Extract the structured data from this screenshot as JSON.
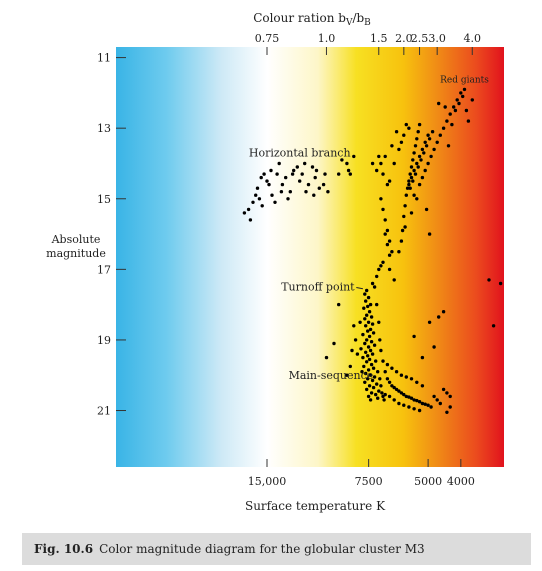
{
  "chart_data": {
    "type": "scatter",
    "title": "",
    "top_axis": {
      "label": "Colour ration b",
      "label_sub1": "V",
      "label_slash": "/b",
      "label_sub2": "B",
      "ticks": [
        {
          "label": "0.75",
          "temperature": 15000
        },
        {
          "label": "1.0",
          "temperature": 10000
        },
        {
          "label": "1.5",
          "temperature": 7000
        },
        {
          "label": "2.0",
          "temperature": 5900
        },
        {
          "label": "2.5",
          "temperature": 5300
        },
        {
          "label": "3.0",
          "temperature": 4700
        },
        {
          "label": "4.0",
          "temperature": 3700
        }
      ]
    },
    "xlabel": "Surface temperature K",
    "x_ticks": [
      {
        "label": "15,000",
        "value": 15000
      },
      {
        "label": "7500",
        "value": 7500
      },
      {
        "label": "5000",
        "value": 5000
      },
      {
        "label": "4000",
        "value": 4000
      }
    ],
    "xlim_temperature": [
      2980,
      42000
    ],
    "x_scale": "log-reversed",
    "ylabel_line1": "Absolute",
    "ylabel_line2": "magnitude",
    "y_ticks": [
      11,
      13,
      15,
      17,
      19,
      21
    ],
    "y_tick_labels": [
      "11",
      "13",
      "15",
      "17",
      "19",
      "21"
    ],
    "ylim": [
      22.6,
      10.7
    ],
    "y_inverted": true,
    "background": "blue-white-yellow-red temperature gradient",
    "annotations": [
      {
        "text": "Red giants",
        "temperature": 3900,
        "magnitude": 11.7
      },
      {
        "text": "Horizontal branch",
        "temperature": 12000,
        "magnitude": 13.8
      },
      {
        "text": "Turnoff point",
        "temperature": 10600,
        "magnitude": 17.6,
        "arrow_to": [
          7800,
          17.55
        ]
      },
      {
        "text": "Main-sequence",
        "temperature": 9700,
        "magnitude": 20.1,
        "arrow_to": [
          7550,
          20.05
        ]
      }
    ],
    "series": [
      {
        "points": [
          [
            7600,
            17.6
          ],
          [
            7700,
            17.7
          ],
          [
            7500,
            17.8
          ],
          [
            7650,
            17.9
          ],
          [
            7400,
            18.0
          ],
          [
            7550,
            18.05
          ],
          [
            7750,
            18.1
          ],
          [
            7450,
            18.2
          ],
          [
            7600,
            18.3
          ],
          [
            7350,
            18.35
          ],
          [
            7700,
            18.4
          ],
          [
            7500,
            18.5
          ],
          [
            7300,
            18.55
          ],
          [
            7650,
            18.6
          ],
          [
            7400,
            18.7
          ],
          [
            7550,
            18.75
          ],
          [
            7250,
            18.8
          ],
          [
            7800,
            18.85
          ],
          [
            7450,
            18.9
          ],
          [
            7600,
            19.0
          ],
          [
            7350,
            19.05
          ],
          [
            7700,
            19.1
          ],
          [
            7200,
            19.15
          ],
          [
            7500,
            19.2
          ],
          [
            7900,
            19.25
          ],
          [
            7400,
            19.3
          ],
          [
            7650,
            19.35
          ],
          [
            7300,
            19.4
          ],
          [
            7550,
            19.45
          ],
          [
            7800,
            19.5
          ],
          [
            7450,
            19.55
          ],
          [
            7150,
            19.6
          ],
          [
            7600,
            19.62
          ],
          [
            7350,
            19.7
          ],
          [
            7750,
            19.75
          ],
          [
            7250,
            19.8
          ],
          [
            7500,
            19.85
          ],
          [
            7050,
            19.9
          ],
          [
            7650,
            19.95
          ],
          [
            7400,
            20.0
          ],
          [
            7850,
            19.9
          ],
          [
            7200,
            20.05
          ],
          [
            7550,
            20.1
          ],
          [
            6950,
            20.1
          ],
          [
            7300,
            20.15
          ],
          [
            7700,
            20.2
          ],
          [
            7100,
            20.25
          ],
          [
            7450,
            20.3
          ],
          [
            6900,
            20.3
          ],
          [
            7250,
            20.35
          ],
          [
            7600,
            20.4
          ],
          [
            7000,
            20.45
          ],
          [
            7350,
            20.5
          ],
          [
            6850,
            20.5
          ],
          [
            7150,
            20.55
          ],
          [
            7500,
            20.6
          ],
          [
            6800,
            20.6
          ],
          [
            7050,
            20.65
          ],
          [
            7400,
            20.7
          ],
          [
            6750,
            20.7
          ],
          [
            8300,
            18.6
          ],
          [
            8200,
            19.0
          ],
          [
            8100,
            19.4
          ],
          [
            8400,
            19.3
          ],
          [
            7950,
            18.5
          ],
          [
            7300,
            17.4
          ],
          [
            7100,
            17.2
          ],
          [
            7000,
            17.0
          ],
          [
            6900,
            16.9
          ],
          [
            6800,
            16.8
          ],
          [
            7200,
            17.5
          ],
          [
            7100,
            18.0
          ],
          [
            7000,
            18.5
          ],
          [
            6950,
            19.0
          ],
          [
            6900,
            19.3
          ],
          [
            6800,
            19.6
          ],
          [
            6700,
            19.9
          ],
          [
            6600,
            20.1
          ],
          [
            6500,
            20.2
          ],
          [
            6400,
            20.3
          ],
          [
            6300,
            20.35
          ],
          [
            6200,
            20.4
          ],
          [
            6100,
            20.45
          ],
          [
            6000,
            20.5
          ],
          [
            5900,
            20.55
          ],
          [
            5800,
            20.6
          ],
          [
            5700,
            20.62
          ],
          [
            5600,
            20.65
          ],
          [
            5500,
            20.7
          ],
          [
            5400,
            20.72
          ],
          [
            5300,
            20.75
          ],
          [
            5200,
            20.8
          ],
          [
            5100,
            20.82
          ],
          [
            5000,
            20.85
          ],
          [
            4900,
            20.9
          ],
          [
            6700,
            20.55
          ],
          [
            6500,
            20.6
          ],
          [
            6300,
            20.7
          ],
          [
            6100,
            20.8
          ],
          [
            5900,
            20.85
          ],
          [
            5700,
            20.9
          ],
          [
            5500,
            20.95
          ],
          [
            5300,
            21.0
          ],
          [
            6600,
            19.7
          ],
          [
            6400,
            19.8
          ],
          [
            6200,
            19.9
          ],
          [
            6000,
            20.0
          ],
          [
            5800,
            20.05
          ],
          [
            5600,
            20.1
          ],
          [
            5400,
            20.2
          ],
          [
            5200,
            20.3
          ],
          [
            4800,
            20.6
          ],
          [
            4700,
            20.7
          ],
          [
            4600,
            20.8
          ],
          [
            4500,
            20.4
          ],
          [
            4400,
            20.5
          ],
          [
            4300,
            20.6
          ],
          [
            5200,
            19.5
          ],
          [
            4800,
            19.2
          ],
          [
            4950,
            18.5
          ],
          [
            5500,
            18.9
          ],
          [
            4500,
            18.2
          ],
          [
            4300,
            20.9
          ],
          [
            4400,
            21.05
          ],
          [
            8500,
            19.75
          ],
          [
            8700,
            20.0
          ],
          [
            9500,
            19.1
          ],
          [
            10000,
            19.5
          ],
          [
            9200,
            18.0
          ],
          [
            4650,
            18.35
          ],
          [
            3300,
            17.3
          ],
          [
            3050,
            17.4
          ],
          [
            3200,
            18.6
          ],
          [
            6500,
            17.0
          ],
          [
            6300,
            17.3
          ],
          [
            6100,
            16.5
          ],
          [
            6000,
            16.2
          ],
          [
            5950,
            15.9
          ],
          [
            5900,
            15.5
          ],
          [
            5850,
            15.2
          ],
          [
            5800,
            14.9
          ],
          [
            5750,
            14.7
          ],
          [
            5700,
            14.5
          ],
          [
            5650,
            14.3
          ],
          [
            5600,
            14.1
          ],
          [
            5550,
            13.9
          ],
          [
            5500,
            13.7
          ],
          [
            5450,
            13.5
          ],
          [
            5400,
            13.3
          ],
          [
            5350,
            13.1
          ],
          [
            5300,
            12.9
          ],
          [
            5700,
            14.6
          ],
          [
            5600,
            14.4
          ],
          [
            5500,
            14.2
          ],
          [
            5400,
            14.0
          ],
          [
            5300,
            13.8
          ],
          [
            5200,
            13.6
          ],
          [
            5100,
            13.4
          ],
          [
            5000,
            13.2
          ],
          [
            5550,
            14.5
          ],
          [
            5450,
            14.3
          ],
          [
            5350,
            14.1
          ],
          [
            5250,
            13.9
          ],
          [
            5150,
            13.7
          ],
          [
            5050,
            13.5
          ],
          [
            4950,
            13.3
          ],
          [
            4850,
            13.1
          ],
          [
            5650,
            14.7
          ],
          [
            5500,
            14.9
          ],
          [
            5400,
            15.0
          ],
          [
            5300,
            14.6
          ],
          [
            5200,
            14.4
          ],
          [
            5100,
            14.2
          ],
          [
            5000,
            14.0
          ],
          [
            4900,
            13.8
          ],
          [
            4800,
            13.6
          ],
          [
            4700,
            13.4
          ],
          [
            4600,
            13.2
          ],
          [
            4500,
            13.0
          ],
          [
            4400,
            12.8
          ],
          [
            4300,
            12.6
          ],
          [
            4200,
            12.4
          ],
          [
            4100,
            12.2
          ],
          [
            4000,
            12.0
          ],
          [
            3900,
            11.9
          ],
          [
            4250,
            12.9
          ],
          [
            4150,
            12.5
          ],
          [
            4050,
            12.3
          ],
          [
            3950,
            12.1
          ],
          [
            3850,
            12.5
          ],
          [
            3700,
            12.2
          ],
          [
            3800,
            12.8
          ],
          [
            4450,
            12.4
          ],
          [
            4350,
            13.5
          ],
          [
            4650,
            12.3
          ],
          [
            6500,
            14.5
          ],
          [
            6300,
            14.0
          ],
          [
            6100,
            13.6
          ],
          [
            6000,
            13.4
          ],
          [
            5900,
            13.2
          ],
          [
            6700,
            13.8
          ],
          [
            6400,
            13.5
          ],
          [
            6200,
            13.1
          ],
          [
            5800,
            12.9
          ],
          [
            5700,
            13.0
          ],
          [
            7300,
            14.0
          ],
          [
            7100,
            14.2
          ],
          [
            7000,
            13.8
          ],
          [
            6800,
            14.3
          ],
          [
            6600,
            14.6
          ],
          [
            6900,
            14.0
          ],
          [
            9200,
            14.3
          ],
          [
            9000,
            13.9
          ],
          [
            8700,
            14.0
          ],
          [
            8500,
            14.3
          ],
          [
            8300,
            13.8
          ],
          [
            8600,
            14.2
          ],
          [
            5050,
            15.3
          ],
          [
            5600,
            15.4
          ],
          [
            4950,
            16.0
          ],
          [
            5850,
            15.8
          ],
          [
            16000,
            14.7
          ],
          [
            15800,
            15.0
          ],
          [
            15500,
            15.2
          ],
          [
            15000,
            14.5
          ],
          [
            14500,
            14.9
          ],
          [
            14000,
            14.3
          ],
          [
            13500,
            14.6
          ],
          [
            13000,
            15.0
          ],
          [
            12500,
            14.2
          ],
          [
            12000,
            14.5
          ],
          [
            11500,
            14.8
          ],
          [
            11000,
            14.1
          ],
          [
            10800,
            14.4
          ],
          [
            10500,
            14.7
          ],
          [
            15300,
            14.3
          ],
          [
            14800,
            14.6
          ],
          [
            14200,
            15.1
          ],
          [
            13800,
            14.0
          ],
          [
            13200,
            14.4
          ],
          [
            12800,
            14.8
          ],
          [
            12200,
            14.1
          ],
          [
            11800,
            14.3
          ],
          [
            11300,
            14.6
          ],
          [
            10900,
            14.9
          ],
          [
            16500,
            15.1
          ],
          [
            17000,
            15.3
          ],
          [
            17500,
            15.4
          ],
          [
            16800,
            15.6
          ],
          [
            16200,
            14.9
          ],
          [
            15600,
            14.4
          ],
          [
            14600,
            14.2
          ],
          [
            13600,
            14.8
          ],
          [
            12600,
            14.3
          ],
          [
            11600,
            14.0
          ],
          [
            10700,
            14.2
          ],
          [
            10200,
            14.6
          ],
          [
            10100,
            14.3
          ],
          [
            9900,
            14.8
          ],
          [
            6900,
            15.0
          ],
          [
            6800,
            15.3
          ],
          [
            6700,
            15.6
          ],
          [
            6600,
            15.9
          ],
          [
            6500,
            16.2
          ],
          [
            6400,
            16.5
          ],
          [
            6700,
            16.0
          ],
          [
            6600,
            16.3
          ],
          [
            6500,
            16.6
          ]
        ]
      }
    ]
  }
}
